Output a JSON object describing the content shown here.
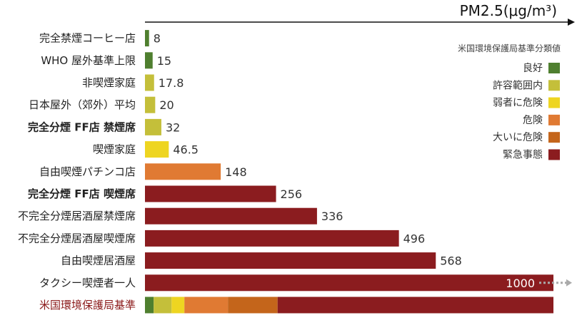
{
  "chart_data": {
    "type": "bar",
    "orientation": "horizontal",
    "unit_label": "PM2.5(μg/m³)",
    "categories": [
      "完全禁煙コーヒー店",
      "WHO 屋外基準上限",
      "非喫煙家庭",
      "日本屋外（郊外）平均",
      "完全分煙 FF店 禁煙席",
      "喫煙家庭",
      "自由喫煙パチンコ店",
      "完全分煙 FF店 喫煙席",
      "不完全分煙居酒屋禁煙席",
      "不完全分煙居酒屋喫煙席",
      "自由喫煙居酒屋",
      "タクシー喫煙者一人"
    ],
    "values": [
      8,
      15,
      17.8,
      20,
      32,
      46.5,
      148,
      256,
      336,
      496,
      568,
      1000
    ],
    "value_labels": [
      "8",
      "15",
      "17.8",
      "20",
      "32",
      "46.5",
      "148",
      "256",
      "336",
      "496",
      "568",
      "1000"
    ],
    "bar_colors": [
      "#4f7f2f",
      "#4f7f2f",
      "#c4bf3a",
      "#c4bf3a",
      "#c4bf3a",
      "#eed521",
      "#e07a33",
      "#8b1c1f",
      "#8b1c1f",
      "#8b1c1f",
      "#8b1c1f",
      "#8b1c1f"
    ],
    "bold_categories": [
      4,
      7
    ],
    "truncated_index": 11,
    "xlim": [
      0,
      800
    ],
    "reference_bar": {
      "label": "米国環境保護局基準",
      "breakpoints": [
        0,
        17,
        52,
        77,
        162,
        259,
        800
      ],
      "colors": [
        "#4f7f2f",
        "#c4bf3a",
        "#eed521",
        "#e07a33",
        "#c4651b",
        "#8b1c1f"
      ]
    },
    "legend": {
      "title": "米国環境保護局基準分類値",
      "position": "right",
      "items": [
        {
          "label": "良好",
          "color": "#4f7f2f"
        },
        {
          "label": "許容範囲内",
          "color": "#c4bf3a"
        },
        {
          "label": "弱者に危険",
          "color": "#eed521"
        },
        {
          "label": "危険",
          "color": "#e07a33"
        },
        {
          "label": "大いに危険",
          "color": "#c4651b"
        },
        {
          "label": "緊急事態",
          "color": "#8b1c1f"
        }
      ]
    }
  }
}
